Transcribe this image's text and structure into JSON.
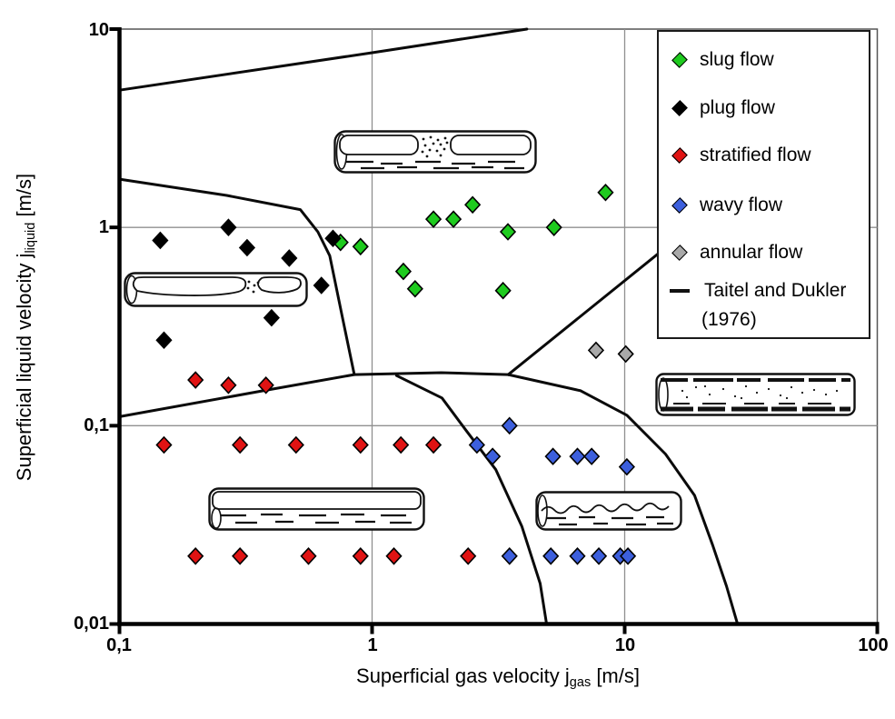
{
  "chart_data": {
    "type": "scatter",
    "title": "",
    "xlabel": {
      "prefix": "Superficial gas velocity j",
      "sub": "gas",
      "unit": " [m/s]"
    },
    "ylabel": {
      "prefix": "Superficial liquid velocity j",
      "sub": "liquid",
      "unit": " [m/s]"
    },
    "x_axis": {
      "scale": "log",
      "min": 0.1,
      "max": 100,
      "ticks": [
        {
          "v": 0.1,
          "label": "0,1"
        },
        {
          "v": 1,
          "label": "1"
        },
        {
          "v": 10,
          "label": "10"
        },
        {
          "v": 100,
          "label": "100"
        }
      ]
    },
    "y_axis": {
      "scale": "log",
      "min": 0.01,
      "max": 10,
      "ticks": [
        {
          "v": 10,
          "label": "10"
        },
        {
          "v": 1,
          "label": "1"
        },
        {
          "v": 0.1,
          "label": "0,1"
        },
        {
          "v": 0.01,
          "label": "0,01"
        }
      ]
    },
    "gridlines": {
      "x": [
        1,
        10
      ],
      "y": [
        1,
        0.1
      ],
      "color": "#909090"
    },
    "series": [
      {
        "name": "slug flow",
        "color": "#1ecb1e",
        "marker": "diamond",
        "points": [
          [
            0.75,
            0.84
          ],
          [
            0.9,
            0.8
          ],
          [
            1.33,
            0.6
          ],
          [
            1.48,
            0.49
          ],
          [
            1.75,
            1.1
          ],
          [
            2.1,
            1.1
          ],
          [
            2.5,
            1.3
          ],
          [
            3.45,
            0.95
          ],
          [
            3.3,
            0.48
          ],
          [
            5.25,
            1.0
          ],
          [
            8.4,
            1.5
          ]
        ]
      },
      {
        "name": "plug flow",
        "color": "#000000",
        "marker": "diamond",
        "points": [
          [
            0.145,
            0.86
          ],
          [
            0.27,
            1.0
          ],
          [
            0.32,
            0.79
          ],
          [
            0.47,
            0.7
          ],
          [
            0.7,
            0.88
          ],
          [
            0.63,
            0.51
          ],
          [
            0.4,
            0.35
          ],
          [
            0.15,
            0.27
          ]
        ]
      },
      {
        "name": "stratified flow",
        "color": "#e01313",
        "marker": "diamond",
        "points": [
          [
            0.2,
            0.17
          ],
          [
            0.27,
            0.16
          ],
          [
            0.38,
            0.16
          ],
          [
            0.15,
            0.08
          ],
          [
            0.3,
            0.08
          ],
          [
            0.5,
            0.08
          ],
          [
            0.9,
            0.08
          ],
          [
            1.3,
            0.08
          ],
          [
            1.75,
            0.08
          ],
          [
            0.2,
            0.022
          ],
          [
            0.3,
            0.022
          ],
          [
            0.56,
            0.022
          ],
          [
            0.9,
            0.022
          ],
          [
            1.22,
            0.022
          ],
          [
            2.4,
            0.022
          ]
        ]
      },
      {
        "name": "wavy flow",
        "color": "#3c5fdd",
        "marker": "diamond",
        "points": [
          [
            3.5,
            0.1
          ],
          [
            2.6,
            0.08
          ],
          [
            3.0,
            0.07
          ],
          [
            5.2,
            0.07
          ],
          [
            6.5,
            0.07
          ],
          [
            7.4,
            0.07
          ],
          [
            10.2,
            0.062
          ],
          [
            3.5,
            0.022
          ],
          [
            5.1,
            0.022
          ],
          [
            6.5,
            0.022
          ],
          [
            7.9,
            0.022
          ],
          [
            9.6,
            0.022
          ],
          [
            10.3,
            0.022
          ]
        ]
      },
      {
        "name": "annular flow",
        "color": "#a9a9a9",
        "marker": "diamond",
        "points": [
          [
            7.7,
            0.24
          ],
          [
            10.1,
            0.23
          ]
        ]
      }
    ],
    "model_lines": {
      "name": "Taitel and Dukler (1976)",
      "color": "#0a0a0a",
      "curves": [
        {
          "id": "upper-boundary",
          "points": [
            [
              0.1,
              4.92
            ],
            [
              1.0,
              7.6
            ],
            [
              4.1,
              10
            ]
          ]
        },
        {
          "id": "plug-slug-boundary",
          "points": [
            [
              0.1,
              1.75
            ],
            [
              0.266,
              1.45
            ],
            [
              0.52,
              1.23
            ],
            [
              0.61,
              0.95
            ],
            [
              0.68,
              0.72
            ],
            [
              0.76,
              0.36
            ],
            [
              0.85,
              0.181
            ]
          ]
        },
        {
          "id": "stratified-upper-boundary",
          "points": [
            [
              0.1,
              0.111
            ],
            [
              0.37,
              0.15
            ],
            [
              0.85,
              0.181
            ],
            [
              1.88,
              0.185
            ],
            [
              3.46,
              0.181
            ]
          ]
        },
        {
          "id": "stratified-wavy-boundary",
          "points": [
            [
              1.25,
              0.179
            ],
            [
              1.89,
              0.138
            ],
            [
              2.35,
              0.095
            ],
            [
              3.09,
              0.06
            ],
            [
              3.92,
              0.031
            ],
            [
              4.63,
              0.016
            ],
            [
              4.9,
              0.0101
            ]
          ]
        },
        {
          "id": "wavy-lower-boundary",
          "points": [
            [
              3.46,
              0.181
            ],
            [
              6.7,
              0.15
            ],
            [
              10.2,
              0.113
            ],
            [
              14.5,
              0.072
            ],
            [
              18.9,
              0.0445
            ],
            [
              22.3,
              0.025
            ],
            [
              25.3,
              0.0155
            ],
            [
              27.9,
              0.0101
            ]
          ]
        },
        {
          "id": "annular-transition",
          "points": [
            [
              3.46,
              0.181
            ],
            [
              13.8,
              0.75
            ]
          ]
        }
      ]
    }
  },
  "legend": {
    "items": [
      {
        "label": "slug flow",
        "color": "#1ecb1e",
        "marker": "diamond"
      },
      {
        "label": "plug flow",
        "color": "#000000",
        "marker": "diamond"
      },
      {
        "label": "stratified flow",
        "color": "#e01313",
        "marker": "diamond"
      },
      {
        "label": "wavy flow",
        "color": "#3c5fdd",
        "marker": "diamond"
      },
      {
        "label": "annular flow",
        "color": "#a9a9a9",
        "marker": "diamond"
      },
      {
        "label": "Taitel and Dukler",
        "label2": "(1976)",
        "color": "#111111",
        "marker": "line"
      }
    ]
  },
  "illustrations": [
    {
      "name": "slug-flow-tube"
    },
    {
      "name": "plug-flow-tube"
    },
    {
      "name": "stratified-flow-tube"
    },
    {
      "name": "wavy-flow-tube"
    },
    {
      "name": "annular-flow-tube"
    }
  ]
}
